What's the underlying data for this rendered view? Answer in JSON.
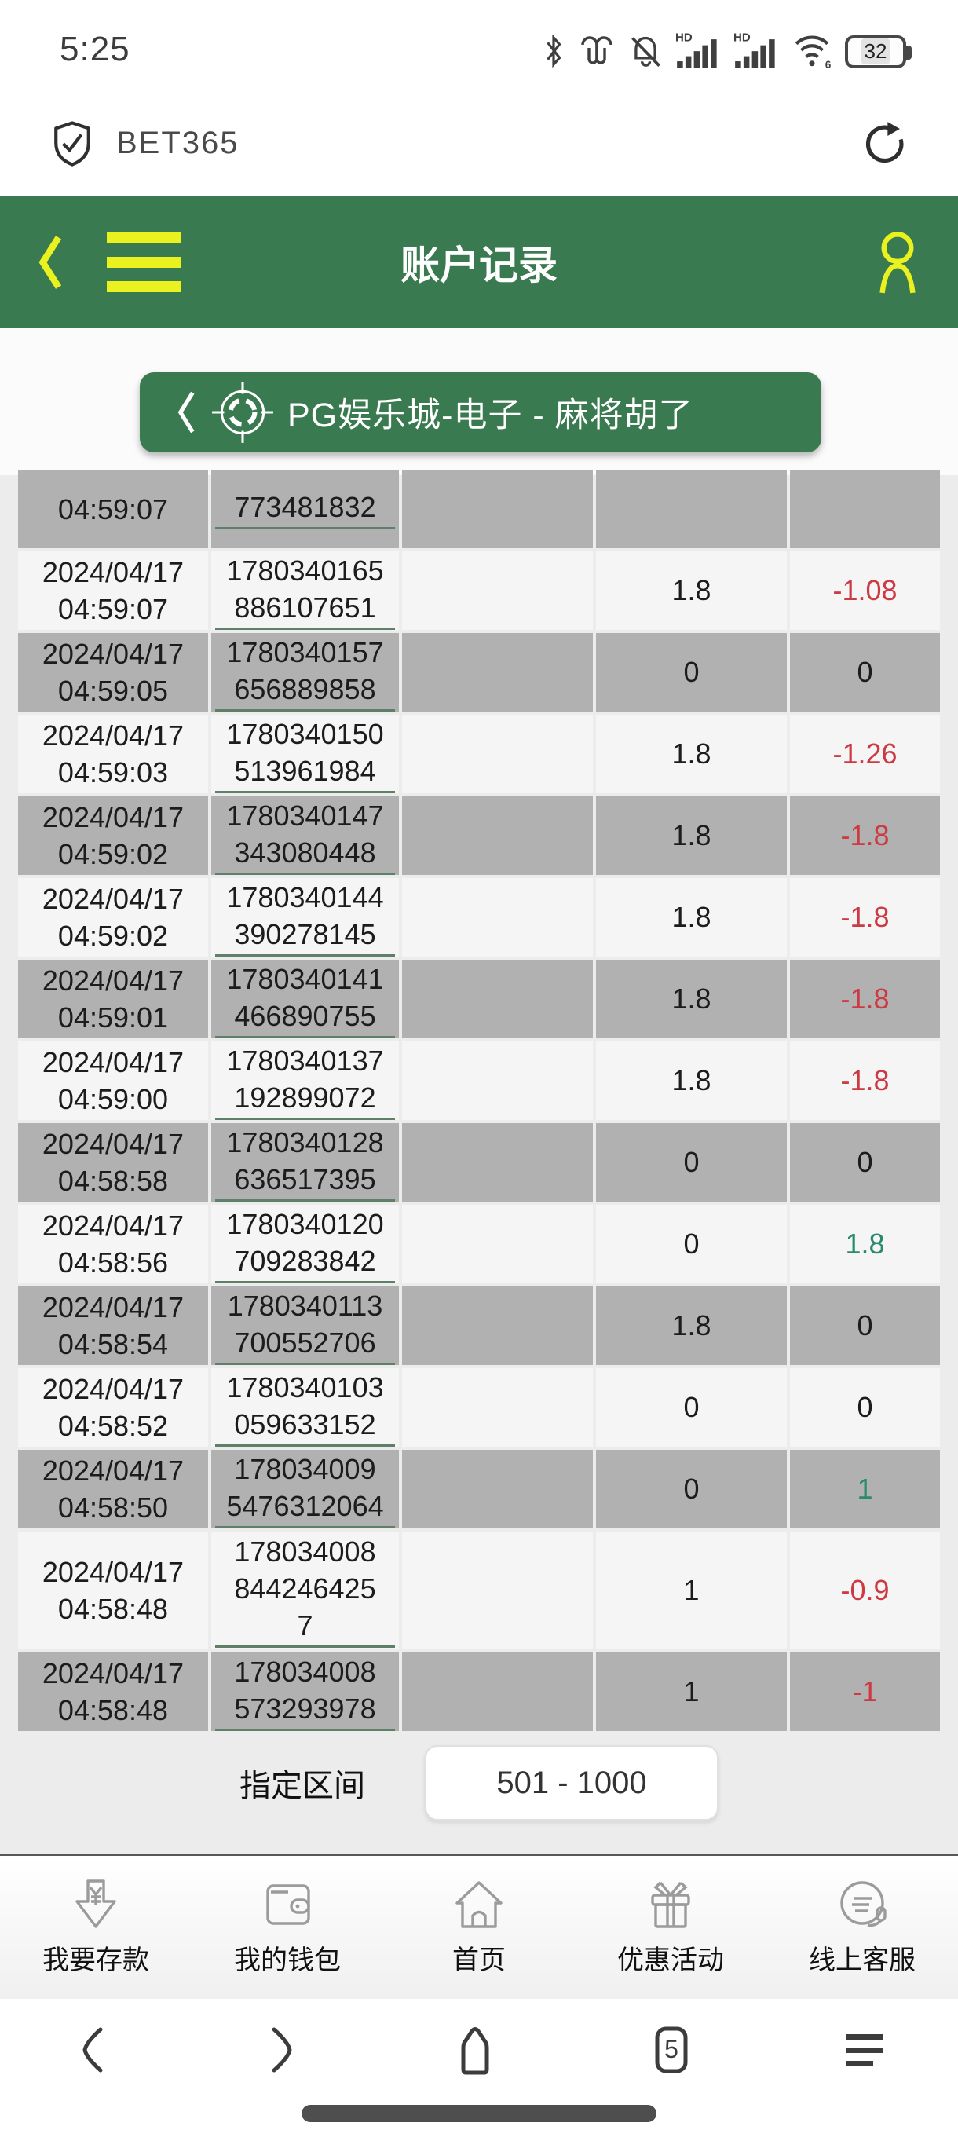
{
  "colors": {
    "header_green": "#3a7a50",
    "accent_yellow": "#e9f21f",
    "loss_red": "#cd3a44",
    "win_green": "#2a8a6e",
    "row_gray": "#b1b1b1",
    "row_light": "#f5f5f5"
  },
  "status_bar": {
    "time": "5:25",
    "battery": "32",
    "hd_label": "HD",
    "wifi_gen": "6"
  },
  "browser_bar": {
    "site": "BET365"
  },
  "header": {
    "title": "账户记录"
  },
  "game_banner": {
    "label": "PG娱乐城-电子 - 麻将胡了"
  },
  "table": {
    "rows": [
      {
        "date": "",
        "time": "04:59:07",
        "id_lines": [
          "",
          "773481832"
        ],
        "bet": "",
        "profit": "",
        "shade": "gray",
        "height": "normal"
      },
      {
        "date": "2024/04/17",
        "time": "04:59:07",
        "id_lines": [
          "1780340165",
          "886107651"
        ],
        "bet": "1.8",
        "profit": "-1.08",
        "shade": "light",
        "height": "normal"
      },
      {
        "date": "2024/04/17",
        "time": "04:59:05",
        "id_lines": [
          "1780340157",
          "656889858"
        ],
        "bet": "0",
        "profit": "0",
        "shade": "gray",
        "height": "normal"
      },
      {
        "date": "2024/04/17",
        "time": "04:59:03",
        "id_lines": [
          "1780340150",
          "513961984"
        ],
        "bet": "1.8",
        "profit": "-1.26",
        "shade": "light",
        "height": "normal"
      },
      {
        "date": "2024/04/17",
        "time": "04:59:02",
        "id_lines": [
          "1780340147",
          "343080448"
        ],
        "bet": "1.8",
        "profit": "-1.8",
        "shade": "gray",
        "height": "normal"
      },
      {
        "date": "2024/04/17",
        "time": "04:59:02",
        "id_lines": [
          "1780340144",
          "390278145"
        ],
        "bet": "1.8",
        "profit": "-1.8",
        "shade": "light",
        "height": "normal"
      },
      {
        "date": "2024/04/17",
        "time": "04:59:01",
        "id_lines": [
          "1780340141",
          "466890755"
        ],
        "bet": "1.8",
        "profit": "-1.8",
        "shade": "gray",
        "height": "normal"
      },
      {
        "date": "2024/04/17",
        "time": "04:59:00",
        "id_lines": [
          "1780340137",
          "192899072"
        ],
        "bet": "1.8",
        "profit": "-1.8",
        "shade": "light",
        "height": "normal"
      },
      {
        "date": "2024/04/17",
        "time": "04:58:58",
        "id_lines": [
          "1780340128",
          "636517395"
        ],
        "bet": "0",
        "profit": "0",
        "shade": "gray",
        "height": "normal"
      },
      {
        "date": "2024/04/17",
        "time": "04:58:56",
        "id_lines": [
          "1780340120",
          "709283842"
        ],
        "bet": "0",
        "profit": "1.8",
        "shade": "light",
        "height": "normal"
      },
      {
        "date": "2024/04/17",
        "time": "04:58:54",
        "id_lines": [
          "1780340113",
          "700552706"
        ],
        "bet": "1.8",
        "profit": "0",
        "shade": "gray",
        "height": "normal"
      },
      {
        "date": "2024/04/17",
        "time": "04:58:52",
        "id_lines": [
          "1780340103",
          "059633152"
        ],
        "bet": "0",
        "profit": "0",
        "shade": "light",
        "height": "normal"
      },
      {
        "date": "2024/04/17",
        "time": "04:58:50",
        "id_lines": [
          "178034009",
          "5476312064"
        ],
        "bet": "0",
        "profit": "1",
        "shade": "gray",
        "height": "normal"
      },
      {
        "date": "2024/04/17",
        "time": "04:58:48",
        "id_lines": [
          "178034008",
          "844246425",
          "7"
        ],
        "bet": "1",
        "profit": "-0.9",
        "shade": "light",
        "height": "tall"
      },
      {
        "date": "2024/04/17",
        "time": "04:58:48",
        "id_lines": [
          "178034008",
          "573293978"
        ],
        "bet": "1",
        "profit": "-1",
        "shade": "gray",
        "height": "normal"
      }
    ]
  },
  "pagination": {
    "label": "指定区间",
    "range": "501 - 1000"
  },
  "bottom_nav": {
    "items": [
      {
        "label": "我要存款",
        "icon": "deposit-icon"
      },
      {
        "label": "我的钱包",
        "icon": "wallet-icon"
      },
      {
        "label": "首页",
        "icon": "home-icon"
      },
      {
        "label": "优惠活动",
        "icon": "gift-icon"
      },
      {
        "label": "线上客服",
        "icon": "customer-service-icon"
      }
    ]
  },
  "android_nav": {
    "tab_count": "5"
  }
}
